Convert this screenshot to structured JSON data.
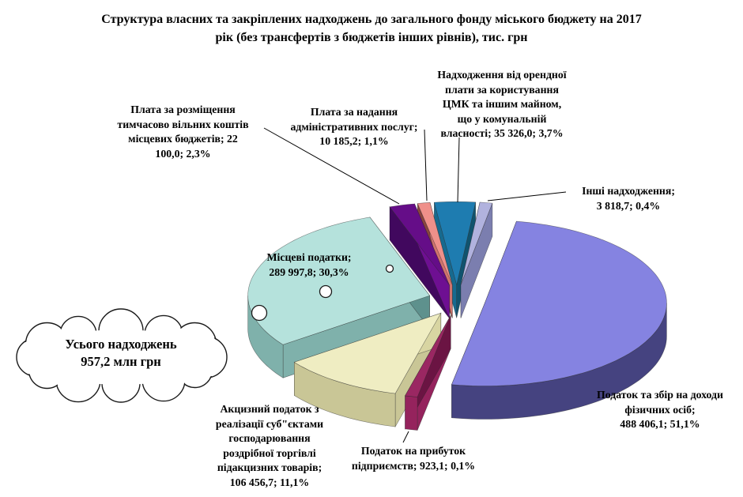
{
  "title": {
    "line1": "Структура власних та закріплених надходжень до загального фонду міського бюджету на 2017",
    "line2": "рік (без трансфертів з бюджетів інших рівнів), тис. грн"
  },
  "cloud_callout": {
    "line1": "Усього надходжень",
    "line2": "957,2 млн грн"
  },
  "chart_data": {
    "type": "pie",
    "style": "3d-exploded",
    "units": "тис. грн",
    "year": "2017",
    "total": {
      "label": "Усього надходжень",
      "value_text": "957,2 млн грн"
    },
    "slices": [
      {
        "key": "pdfo",
        "name": "Податок та збір на доходи фізичних осіб",
        "value": 488406.1,
        "value_text": "488 406,1",
        "pct": 51.1,
        "pct_text": "51,1%",
        "color": "#8583E1",
        "side_color": "#5D5BAE",
        "wall_color": "#454380",
        "label_lines": [
          "Податок та збір на доходи",
          "фізичних осіб;",
          "488 406,1; 51,1%"
        ]
      },
      {
        "key": "prybutok",
        "name": "Податок на прибуток підприємств",
        "value": 923.1,
        "value_text": "923,1",
        "pct": 0.1,
        "pct_text": "0,1%",
        "color": "#9A2762",
        "side_color": "#6B1443",
        "wall_color": "#95235D",
        "label_lines": [
          "Податок на прибуток",
          "підприємств; 923,1; 0,1%"
        ]
      },
      {
        "key": "aktsyz",
        "name": "Акцизний податок з реалізації суб\"єктами господарювання роздрібної торгівлі підакцизних товарів",
        "value": 106456.7,
        "value_text": "106 456,7",
        "pct": 11.1,
        "pct_text": "11,1%",
        "color": "#EFEDC2",
        "side_color": "#D8D5A2",
        "wall_color": "#C9C696",
        "label_lines": [
          "Акцизний податок з",
          "реалізації суб\"єктами",
          "господарювання",
          "роздрібної торгівлі",
          "підакцизних товарів;",
          "106 456,7; 11,1%"
        ]
      },
      {
        "key": "mistsevi",
        "name": "Місцеві податки",
        "value": 289997.8,
        "value_text": "289 997,8",
        "pct": 30.3,
        "pct_text": "30,3%",
        "color": "#B5E2DC",
        "side_color": "#5E918D",
        "wall_color": "#7FB1AB",
        "label_lines": [
          "Місцеві податки;",
          "289 997,8; 30,3%"
        ]
      },
      {
        "key": "rozmishchennia",
        "name": "Плата за розміщення тимчасово вільних коштів місцевих бюджетів",
        "value": 22100.0,
        "value_text": "22 100,0",
        "pct": 2.3,
        "pct_text": "2,3%",
        "color": "#650D88",
        "side_color": "#6E0F92",
        "wall_color": "#41085E",
        "label_lines": [
          "Плата за розміщення",
          "тимчасово вільних коштів",
          "місцевих бюджетів; 22",
          "100,0; 2,3%"
        ]
      },
      {
        "key": "adminposluhy",
        "name": "Плата за надання адміністративних послуг",
        "value": 10185.2,
        "value_text": "10 185,2",
        "pct": 1.1,
        "pct_text": "1,1%",
        "color": "#EF908A",
        "side_color": "#D0736D",
        "wall_color": "#8A443E",
        "label_lines": [
          "Плата за надання",
          "адміністративних послуг;",
          "10 185,2; 1,1%"
        ]
      },
      {
        "key": "tsmk",
        "name": "Надходження від орендної плати за користування ЦМК та іншим майном, що у комунальній власності",
        "value": 35326.0,
        "value_text": "35 326,0",
        "pct": 3.7,
        "pct_text": "3,7%",
        "color": "#1E7CB0",
        "side_color": "#10536E",
        "wall_color": "#176A8F",
        "label_lines": [
          "Надходження від орендної",
          "плати за користування",
          "ЦМК та іншим майном,",
          "що у комунальній",
          "власності; 35 326,0; 3,7%"
        ]
      },
      {
        "key": "inshi",
        "name": "Інші надходження",
        "value": 3818.7,
        "value_text": "3 818,7",
        "pct": 0.4,
        "pct_text": "0,4%",
        "color": "#B1B2DE",
        "side_color": "#7B7EAF",
        "wall_color": "#8C8FBE",
        "label_lines": [
          "Інші надходження;",
          "3 818,7; 0,4%"
        ]
      }
    ]
  }
}
